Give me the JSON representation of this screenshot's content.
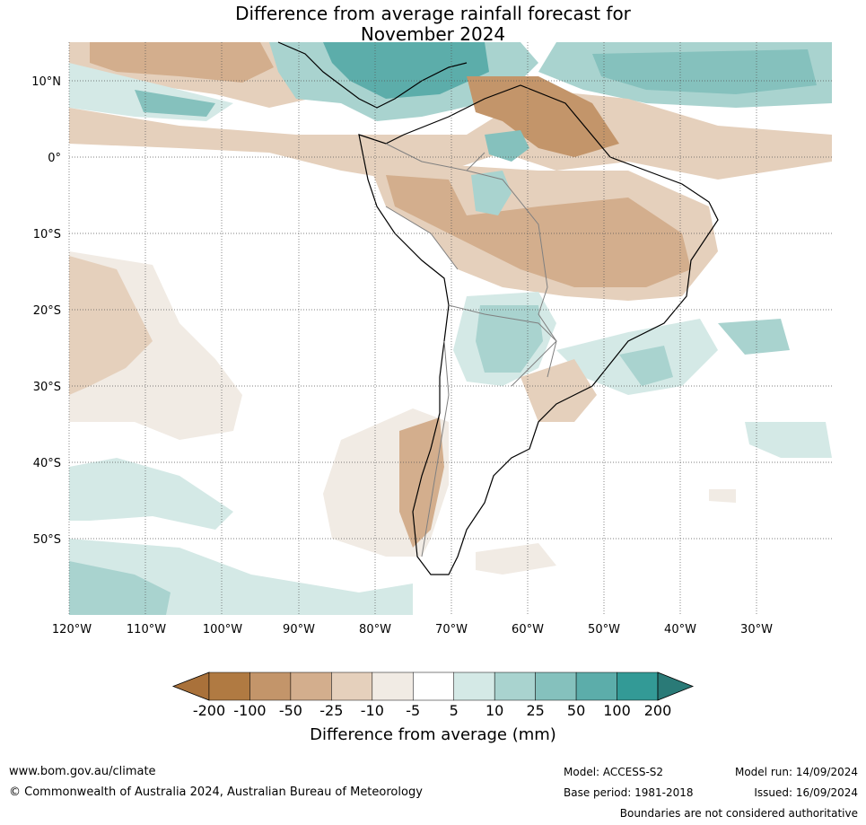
{
  "title_line1": "Difference from average rainfall forecast for",
  "title_line2": "November 2024",
  "lat_labels": [
    "10°N",
    "0°",
    "10°S",
    "20°S",
    "30°S",
    "40°S",
    "50°S"
  ],
  "lon_labels": [
    "120°W",
    "110°W",
    "100°W",
    "90°W",
    "80°W",
    "70°W",
    "60°W",
    "50°W",
    "40°W",
    "30°W"
  ],
  "colorbar": {
    "ticks": [
      "-200",
      "-100",
      "-50",
      "-25",
      "-10",
      "-5",
      "5",
      "10",
      "25",
      "50",
      "100",
      "200"
    ],
    "colors": [
      "#a9713a",
      "#b07a42",
      "#c3956a",
      "#d3ae8d",
      "#e5d0bc",
      "#f1ebe4",
      "#ffffff",
      "#d4e9e6",
      "#a9d3cf",
      "#85c1bd",
      "#5cadaa",
      "#339a96",
      "#2a7a77"
    ],
    "label": "Difference from average (mm)"
  },
  "footer": {
    "url": "www.bom.gov.au/climate",
    "copyright": "© Commonwealth of Australia 2024, Australian Bureau of Meteorology",
    "model": "Model: ACCESS-S2",
    "base_period": "Base period: 1981-2018",
    "model_run": "Model run: 14/09/2024",
    "issued": "Issued: 16/09/2024",
    "disclaimer": "Boundaries are not considered authoritative"
  }
}
